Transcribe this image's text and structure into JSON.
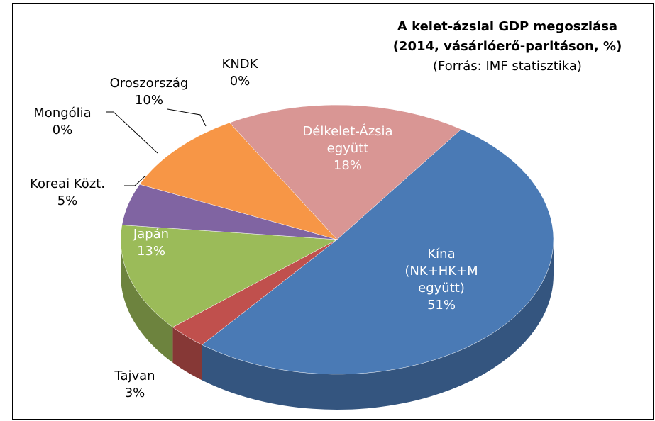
{
  "chart_data": {
    "type": "pie3d",
    "title": [
      "A kelet-ázsiai GDP megoszlása",
      "(2014, vásárlóerő-paritáson, %)"
    ],
    "subtitle": "(Forrás: IMF statisztika)",
    "categories": [
      "Kína (NK+HK+M együtt)",
      "Tajvan",
      "Japán",
      "Koreai Közt.",
      "Mongólia",
      "Oroszország",
      "KNDK",
      "Délkelet-Ázsia együtt"
    ],
    "values": [
      51,
      3,
      13,
      5,
      0,
      10,
      0,
      18
    ],
    "value_labels": [
      "51%",
      "3%",
      "13%",
      "5%",
      "0%",
      "10%",
      "0%",
      "18%"
    ],
    "colors": [
      "#4a7ab5",
      "#c0504d",
      "#9bbb59",
      "#8064a2",
      "#4bacc6",
      "#f79646",
      "#2c4d75",
      "#d99694"
    ]
  }
}
